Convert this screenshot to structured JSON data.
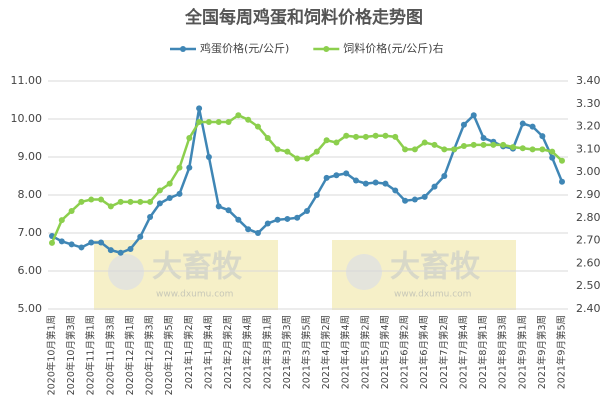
{
  "chart_data": {
    "type": "line",
    "title": "全国每周鸡蛋和饲料价格走势图",
    "watermark": {
      "text": "大畜牧",
      "url": "www.dxumu.com"
    },
    "categories": [
      "2020年10月第1周",
      null,
      "2020年10月第3周",
      null,
      "2020年11月第1周",
      null,
      "2020年11月第3周",
      null,
      "2020年12月第1周",
      null,
      "2020年12月第3周",
      null,
      "2020年12月第5周",
      null,
      "2021年1月第2周",
      null,
      "2021年1月第4周",
      null,
      "2021年2月第2周",
      null,
      "2021年2月第4周",
      null,
      "2021年3月第1周",
      null,
      "2021年3月第3周",
      null,
      "2021年3月第5周",
      null,
      "2021年4月第2周",
      null,
      "2021年4月第4周",
      null,
      "2021年5月第2周",
      null,
      "2021年5月第4周",
      null,
      "2021年6月第2周",
      null,
      "2021年6月第4周",
      null,
      "2021年7月第2周",
      null,
      "2021年7月第4周",
      null,
      "2021年8月第1周",
      null,
      "2021年8月第3周",
      null,
      "2021年9月第1周",
      null,
      "2021年9月第3周",
      null,
      "2021年9月第5周"
    ],
    "series": [
      {
        "name": "鸡蛋价格(元/公斤)",
        "color": "#3f86b5",
        "axis": "y",
        "values": [
          6.92,
          6.78,
          6.7,
          6.62,
          6.75,
          6.75,
          6.55,
          6.48,
          6.58,
          6.9,
          7.42,
          7.78,
          7.92,
          8.03,
          8.72,
          10.28,
          9.0,
          7.7,
          7.6,
          7.35,
          7.1,
          7.0,
          7.25,
          7.35,
          7.37,
          7.4,
          7.58,
          8.0,
          8.45,
          8.52,
          8.57,
          8.38,
          8.3,
          8.33,
          8.3,
          8.12,
          7.85,
          7.88,
          7.95,
          8.22,
          8.5,
          9.2,
          9.85,
          10.1,
          9.5,
          9.4,
          9.28,
          9.22,
          9.88,
          9.8,
          9.55,
          8.98,
          8.35
        ]
      },
      {
        "name": "饲料价格(元/公斤)右",
        "color": "#8ccf4d",
        "axis": "y2",
        "values": [
          2.69,
          2.79,
          2.83,
          2.87,
          2.88,
          2.88,
          2.85,
          2.87,
          2.87,
          2.87,
          2.87,
          2.92,
          2.95,
          3.02,
          3.15,
          3.22,
          3.22,
          3.22,
          3.22,
          3.25,
          3.23,
          3.2,
          3.15,
          3.1,
          3.09,
          3.06,
          3.06,
          3.09,
          3.14,
          3.13,
          3.16,
          3.155,
          3.155,
          3.16,
          3.16,
          3.155,
          3.1,
          3.1,
          3.13,
          3.12,
          3.1,
          3.1,
          3.115,
          3.12,
          3.12,
          3.12,
          3.12,
          3.11,
          3.105,
          3.1,
          3.1,
          3.09,
          3.05
        ]
      }
    ],
    "ylim": [
      5,
      11
    ],
    "yticks": [
      {
        "value": 5,
        "label": "5.00"
      },
      {
        "value": 6,
        "label": "6.00"
      },
      {
        "value": 7,
        "label": "7.00"
      },
      {
        "value": 8,
        "label": "8.00"
      },
      {
        "value": 9,
        "label": "9.00"
      },
      {
        "value": 10,
        "label": "10.00"
      },
      {
        "value": 11,
        "label": "11.00"
      }
    ],
    "y2lim": [
      2.4,
      3.4
    ],
    "y2ticks": [
      {
        "value": 2.4,
        "label": "2.40"
      },
      {
        "value": 2.5,
        "label": "2.50"
      },
      {
        "value": 2.6,
        "label": "2.60"
      },
      {
        "value": 2.7,
        "label": "2.70"
      },
      {
        "value": 2.8,
        "label": "2.80"
      },
      {
        "value": 2.9,
        "label": "2.90"
      },
      {
        "value": 3.0,
        "label": "3.00"
      },
      {
        "value": 3.1,
        "label": "3.10"
      },
      {
        "value": 3.2,
        "label": "3.20"
      },
      {
        "value": 3.3,
        "label": "3.30"
      },
      {
        "value": 3.4,
        "label": "3.40"
      }
    ],
    "grid": true,
    "legend": "top"
  }
}
